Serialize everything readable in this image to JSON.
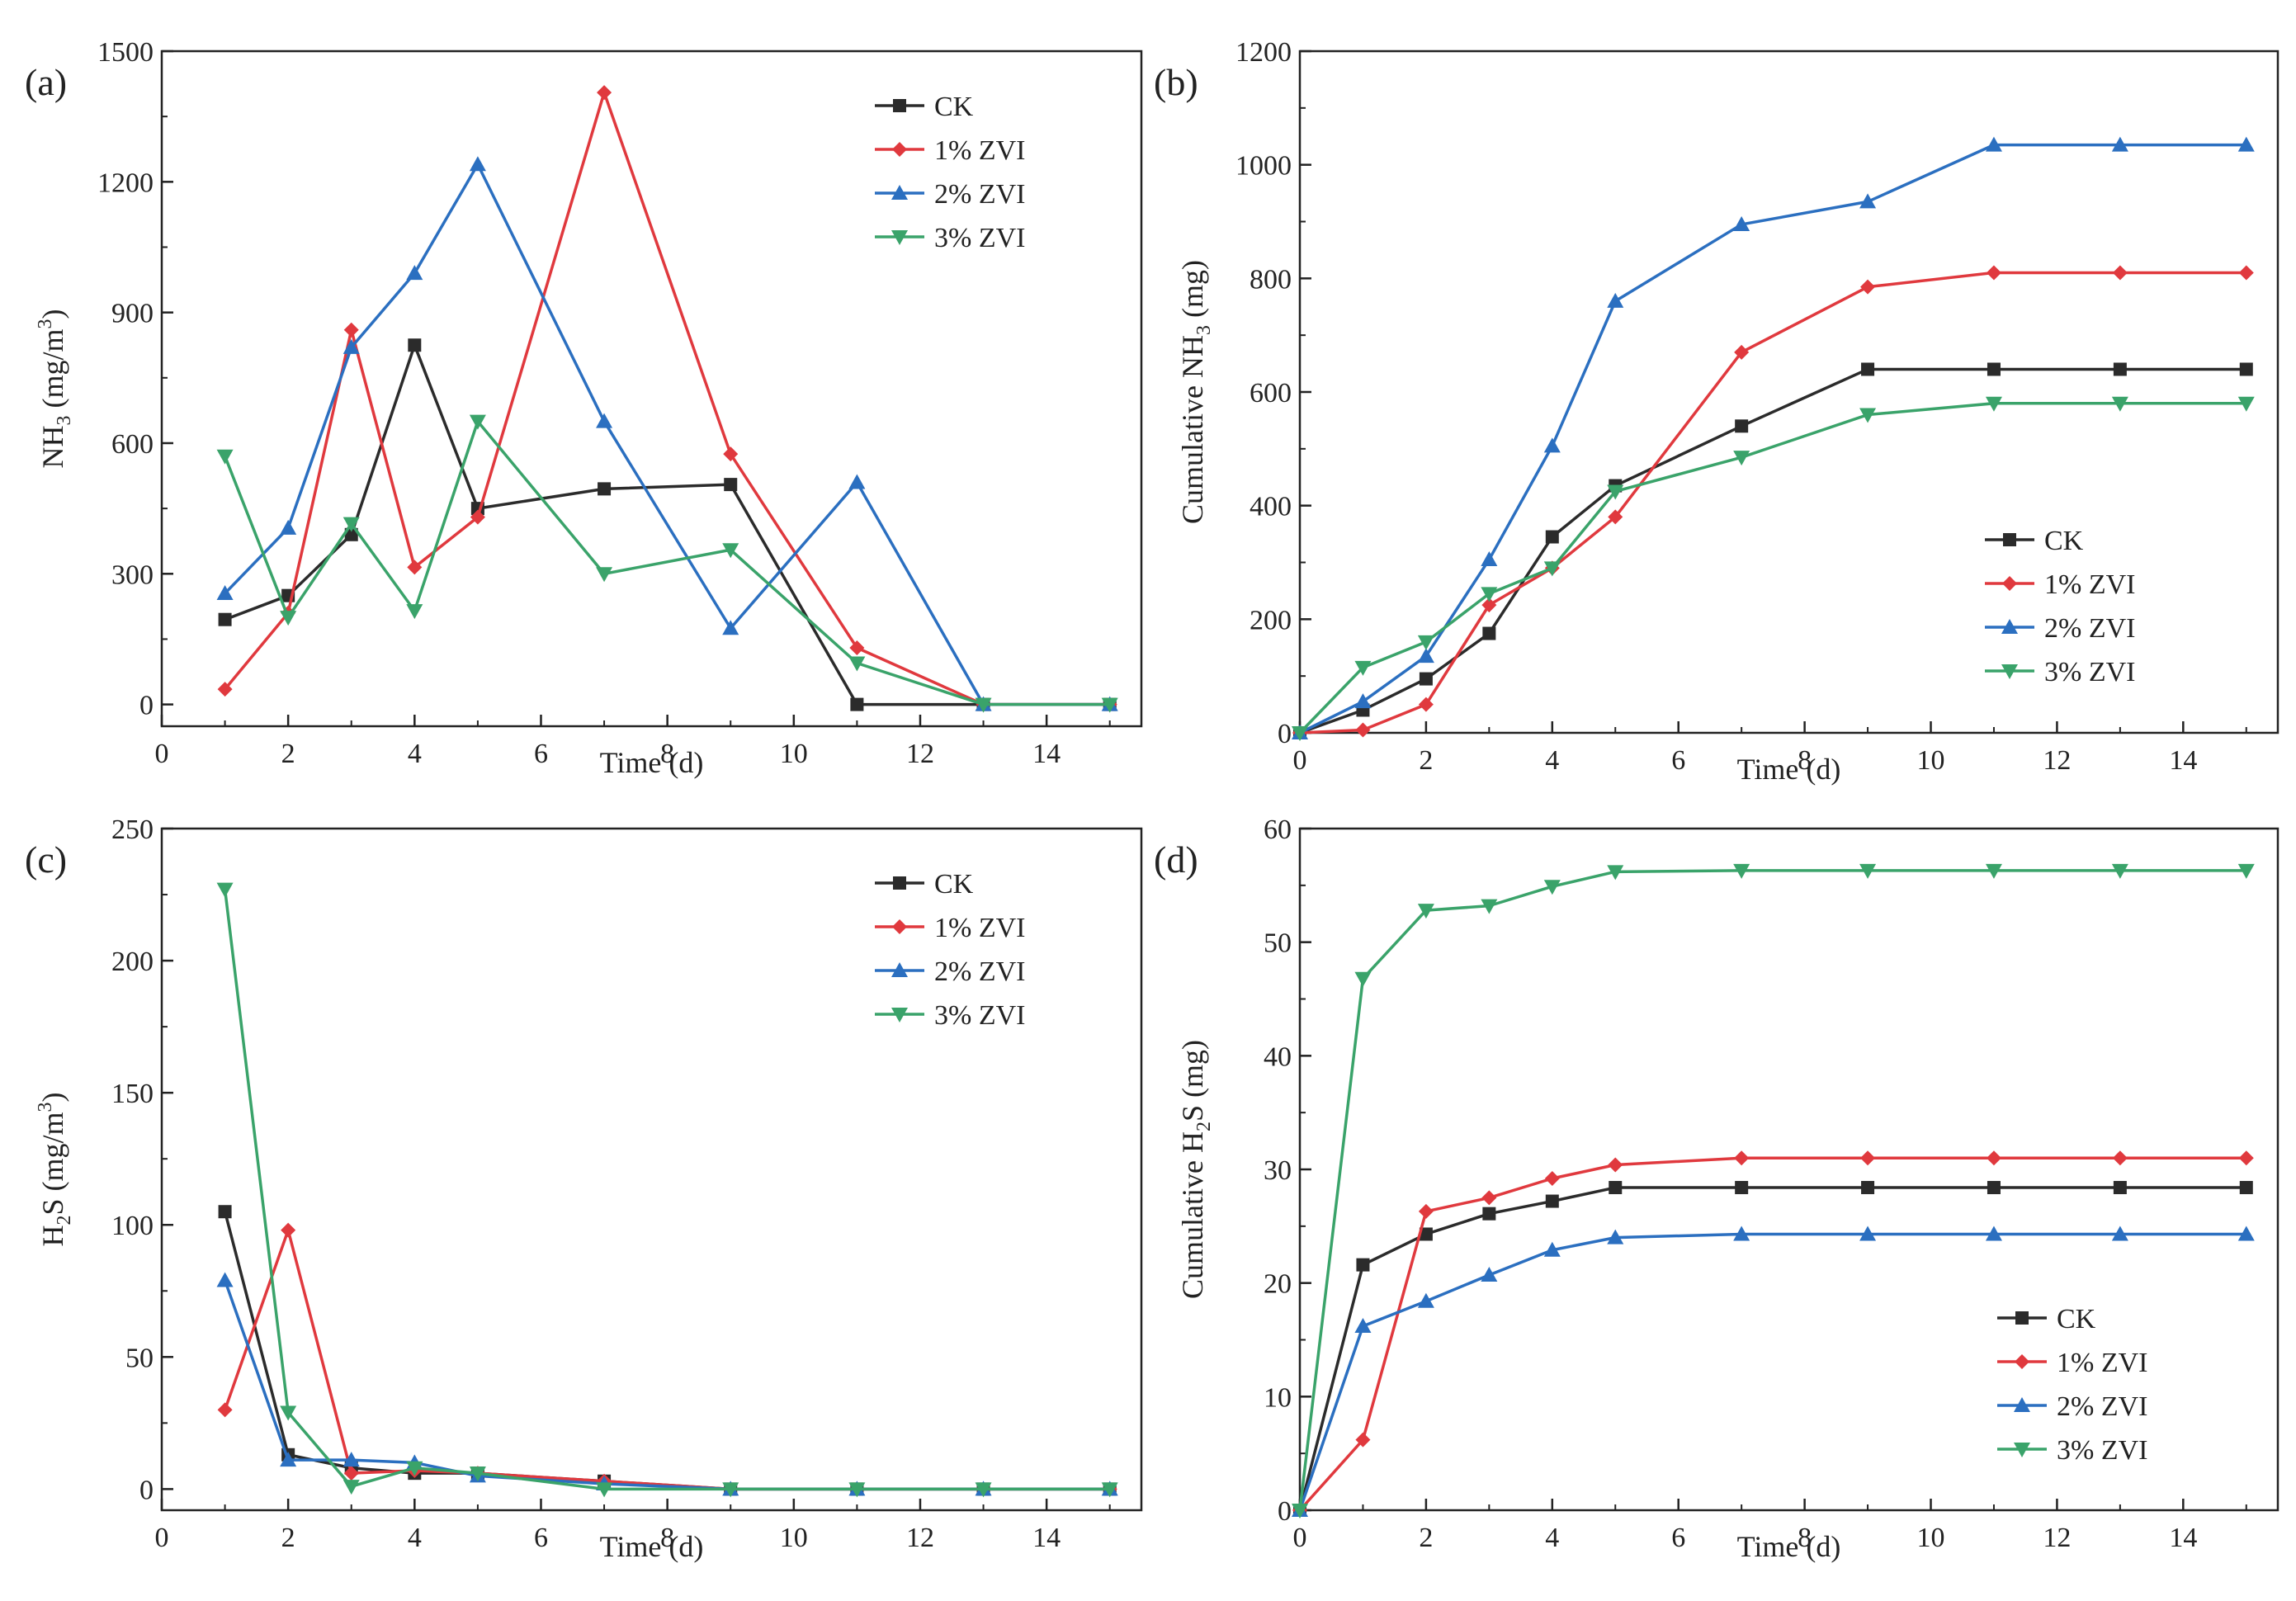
{
  "colors": {
    "CK": "#2b2b2b",
    "ZVI1": "#e0393e",
    "ZVI2": "#2b6fc0",
    "ZVI3": "#3aa36a",
    "axis": "#222222"
  },
  "chart_data": [
    {
      "panel": "(a)",
      "type": "line",
      "title": "",
      "xlabel": "Time (d)",
      "ylabel_main": "NH",
      "ylabel_sub": "3",
      "ylabel_unit_pre": " (mg/m",
      "ylabel_unit_sup": "3",
      "ylabel_unit_post": ")",
      "xlim": [
        0,
        15.5
      ],
      "ylim": [
        -50,
        1500
      ],
      "xticks": [
        0,
        2,
        4,
        6,
        8,
        10,
        12,
        14
      ],
      "yticks": [
        0,
        300,
        600,
        900,
        1200,
        1500
      ],
      "legend_position": "top-right",
      "series": [
        {
          "name": "CK",
          "color_key": "CK",
          "marker": "square",
          "x": [
            1,
            2,
            3,
            4,
            5,
            7,
            9,
            11,
            13,
            15
          ],
          "y": [
            195,
            250,
            390,
            825,
            450,
            495,
            505,
            0,
            0,
            0
          ]
        },
        {
          "name": "1% ZVI",
          "color_key": "ZVI1",
          "marker": "diamond",
          "x": [
            1,
            2,
            3,
            4,
            5,
            7,
            9,
            11,
            13,
            15
          ],
          "y": [
            35,
            210,
            860,
            315,
            430,
            1405,
            575,
            130,
            0,
            0
          ]
        },
        {
          "name": "2% ZVI",
          "color_key": "ZVI2",
          "marker": "triangle-up",
          "x": [
            1,
            2,
            3,
            4,
            5,
            7,
            9,
            11,
            13,
            15
          ],
          "y": [
            255,
            405,
            820,
            990,
            1240,
            650,
            175,
            510,
            0,
            0
          ]
        },
        {
          "name": "3% ZVI",
          "color_key": "ZVI3",
          "marker": "triangle-down",
          "x": [
            1,
            2,
            3,
            4,
            5,
            7,
            9,
            11,
            13,
            15
          ],
          "y": [
            570,
            200,
            415,
            215,
            650,
            300,
            355,
            95,
            0,
            0
          ]
        }
      ]
    },
    {
      "panel": "(b)",
      "type": "line",
      "title": "",
      "xlabel": "Time (d)",
      "ylabel_main": "Cumulative NH",
      "ylabel_sub": "3",
      "ylabel_unit_pre": " (mg)",
      "ylabel_unit_sup": "",
      "ylabel_unit_post": "",
      "xlim": [
        0,
        15.5
      ],
      "ylim": [
        0,
        1200
      ],
      "xticks": [
        0,
        2,
        4,
        6,
        8,
        10,
        12,
        14
      ],
      "yticks": [
        0,
        200,
        400,
        600,
        800,
        1000,
        1200
      ],
      "legend_position": "bottom-right",
      "series": [
        {
          "name": "CK",
          "color_key": "CK",
          "marker": "square",
          "x": [
            0,
            1,
            2,
            3,
            4,
            5,
            7,
            9,
            11,
            13,
            15
          ],
          "y": [
            0,
            40,
            95,
            175,
            345,
            435,
            540,
            640,
            640,
            640,
            640
          ]
        },
        {
          "name": "1% ZVI",
          "color_key": "ZVI1",
          "marker": "diamond",
          "x": [
            0,
            1,
            2,
            3,
            4,
            5,
            7,
            9,
            11,
            13,
            15
          ],
          "y": [
            0,
            5,
            50,
            225,
            290,
            380,
            670,
            785,
            810,
            810,
            810
          ]
        },
        {
          "name": "2% ZVI",
          "color_key": "ZVI2",
          "marker": "triangle-up",
          "x": [
            0,
            1,
            2,
            3,
            4,
            5,
            7,
            9,
            11,
            13,
            15
          ],
          "y": [
            0,
            55,
            135,
            305,
            505,
            760,
            895,
            935,
            1035,
            1035,
            1035
          ]
        },
        {
          "name": "3% ZVI",
          "color_key": "ZVI3",
          "marker": "triangle-down",
          "x": [
            0,
            1,
            2,
            3,
            4,
            5,
            7,
            9,
            11,
            13,
            15
          ],
          "y": [
            0,
            115,
            160,
            245,
            290,
            425,
            485,
            560,
            580,
            580,
            580
          ]
        }
      ]
    },
    {
      "panel": "(c)",
      "type": "line",
      "title": "",
      "xlabel": "Time (d)",
      "ylabel_main": "H",
      "ylabel_sub": "2",
      "ylabel_unit_pre": "S (mg/m",
      "ylabel_unit_sup": "3",
      "ylabel_unit_post": ")",
      "xlim": [
        0,
        15.5
      ],
      "ylim": [
        -8,
        250
      ],
      "xticks": [
        0,
        2,
        4,
        6,
        8,
        10,
        12,
        14
      ],
      "yticks": [
        0,
        50,
        100,
        150,
        200,
        250
      ],
      "legend_position": "top-right",
      "series": [
        {
          "name": "CK",
          "color_key": "CK",
          "marker": "square",
          "x": [
            1,
            2,
            3,
            4,
            5,
            7,
            9,
            11,
            13,
            15
          ],
          "y": [
            105,
            13,
            8,
            6,
            6,
            3,
            0,
            0,
            0,
            0
          ]
        },
        {
          "name": "1% ZVI",
          "color_key": "ZVI1",
          "marker": "diamond",
          "x": [
            1,
            2,
            3,
            4,
            5,
            7,
            9,
            11,
            13,
            15
          ],
          "y": [
            30,
            98,
            6,
            7,
            6,
            3,
            0,
            0,
            0,
            0
          ]
        },
        {
          "name": "2% ZVI",
          "color_key": "ZVI2",
          "marker": "triangle-up",
          "x": [
            1,
            2,
            3,
            4,
            5,
            7,
            9,
            11,
            13,
            15
          ],
          "y": [
            79,
            11,
            11,
            10,
            5,
            2,
            0,
            0,
            0,
            0
          ]
        },
        {
          "name": "3% ZVI",
          "color_key": "ZVI3",
          "marker": "triangle-down",
          "x": [
            1,
            2,
            3,
            4,
            5,
            7,
            9,
            11,
            13,
            15
          ],
          "y": [
            227,
            29,
            1,
            8,
            6,
            0,
            0,
            0,
            0,
            0
          ]
        }
      ]
    },
    {
      "panel": "(d)",
      "type": "line",
      "title": "",
      "xlabel": "Time (d)",
      "ylabel_main": "Cumulative H",
      "ylabel_sub": "2",
      "ylabel_unit_pre": "S (mg)",
      "ylabel_unit_sup": "",
      "ylabel_unit_post": "",
      "xlim": [
        0,
        15.5
      ],
      "ylim": [
        0,
        60
      ],
      "xticks": [
        0,
        2,
        4,
        6,
        8,
        10,
        12,
        14
      ],
      "yticks": [
        0,
        10,
        20,
        30,
        40,
        50,
        60
      ],
      "legend_position": "bottom-right",
      "series": [
        {
          "name": "CK",
          "color_key": "CK",
          "marker": "square",
          "x": [
            0,
            1,
            2,
            3,
            4,
            5,
            7,
            9,
            11,
            13,
            15
          ],
          "y": [
            0,
            21.6,
            24.3,
            26.1,
            27.2,
            28.4,
            28.4,
            28.4,
            28.4,
            28.4,
            28.4
          ]
        },
        {
          "name": "1% ZVI",
          "color_key": "ZVI1",
          "marker": "diamond",
          "x": [
            0,
            1,
            2,
            3,
            4,
            5,
            7,
            9,
            11,
            13,
            15
          ],
          "y": [
            0,
            6.2,
            26.3,
            27.5,
            29.2,
            30.4,
            31.0,
            31.0,
            31.0,
            31.0,
            31.0
          ]
        },
        {
          "name": "2% ZVI",
          "color_key": "ZVI2",
          "marker": "triangle-up",
          "x": [
            0,
            1,
            2,
            3,
            4,
            5,
            7,
            9,
            11,
            13,
            15
          ],
          "y": [
            0,
            16.2,
            18.4,
            20.7,
            22.9,
            24.0,
            24.3,
            24.3,
            24.3,
            24.3,
            24.3
          ]
        },
        {
          "name": "3% ZVI",
          "color_key": "ZVI3",
          "marker": "triangle-down",
          "x": [
            0,
            1,
            2,
            3,
            4,
            5,
            7,
            9,
            11,
            13,
            15
          ],
          "y": [
            0,
            46.8,
            52.8,
            53.2,
            54.9,
            56.2,
            56.3,
            56.3,
            56.3,
            56.3,
            56.3
          ]
        }
      ]
    }
  ]
}
